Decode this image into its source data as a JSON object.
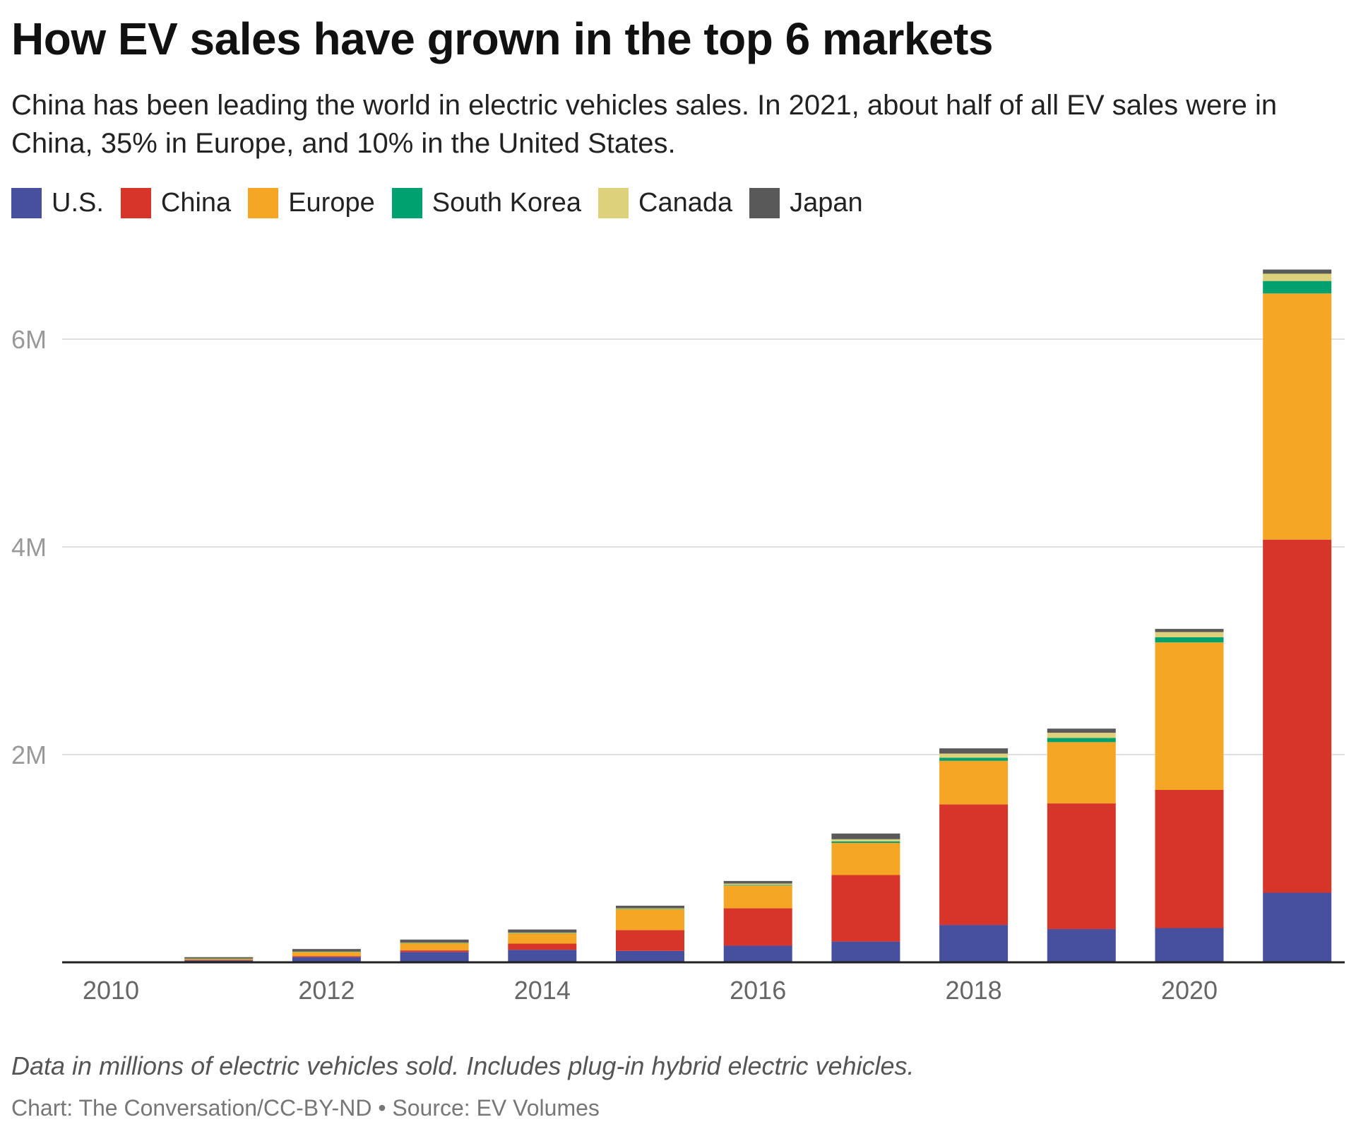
{
  "title": "How EV sales have grown in the top 6 markets",
  "subtitle": "China has been leading the world in electric vehicles sales. In 2021, about half of all EV sales were in China, 35% in Europe, and 10% in the United States.",
  "note": "Data in millions of electric vehicles sold. Includes plug-in hybrid electric vehicles.",
  "source": "Chart: The Conversation/CC-BY-ND • Source: EV Volumes",
  "chart_data": {
    "type": "bar",
    "stacked": true,
    "categories": [
      "2010",
      "2011",
      "2012",
      "2013",
      "2014",
      "2015",
      "2016",
      "2017",
      "2018",
      "2019",
      "2020",
      "2021"
    ],
    "x_tick_labels": [
      "2010",
      "2012",
      "2014",
      "2016",
      "2018",
      "2020"
    ],
    "y_tick_labels": [
      "2M",
      "4M",
      "6M"
    ],
    "y_ticks": [
      2,
      4,
      6
    ],
    "ylim": [
      0,
      6.7
    ],
    "grid": true,
    "legend_placement": "top-left",
    "series": [
      {
        "name": "U.S.",
        "color": "#474f9f",
        "values": [
          0.0,
          0.018,
          0.05,
          0.1,
          0.12,
          0.11,
          0.16,
          0.2,
          0.36,
          0.32,
          0.33,
          0.67
        ]
      },
      {
        "name": "China",
        "color": "#d7342a",
        "values": [
          0.0,
          0.005,
          0.01,
          0.015,
          0.06,
          0.2,
          0.36,
          0.64,
          1.16,
          1.21,
          1.33,
          3.4
        ]
      },
      {
        "name": "Europe",
        "color": "#f4a624",
        "values": [
          0.0,
          0.012,
          0.04,
          0.07,
          0.1,
          0.2,
          0.22,
          0.31,
          0.42,
          0.59,
          1.42,
          2.37
        ]
      },
      {
        "name": "South Korea",
        "color": "#00a06f",
        "values": [
          0.0,
          0.0005,
          0.001,
          0.001,
          0.001,
          0.003,
          0.006,
          0.015,
          0.03,
          0.04,
          0.05,
          0.12
        ]
      },
      {
        "name": "Canada",
        "color": "#ded17b",
        "values": [
          0.0,
          0.001,
          0.002,
          0.003,
          0.005,
          0.007,
          0.012,
          0.02,
          0.04,
          0.05,
          0.05,
          0.07
        ]
      },
      {
        "name": "Japan",
        "color": "#595959",
        "values": [
          0.0,
          0.013,
          0.025,
          0.03,
          0.03,
          0.025,
          0.025,
          0.055,
          0.05,
          0.04,
          0.03,
          0.04
        ]
      }
    ]
  }
}
